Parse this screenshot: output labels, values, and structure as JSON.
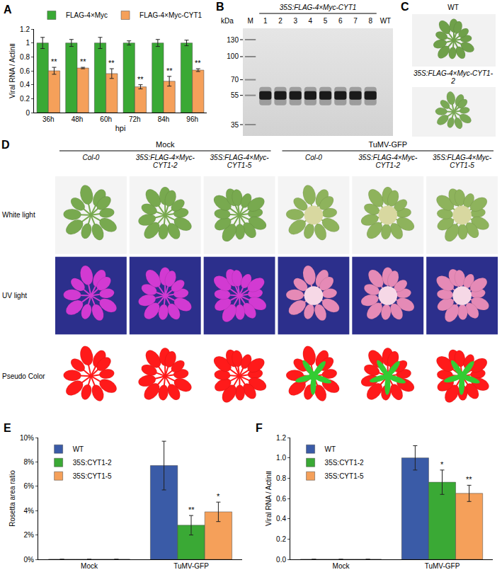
{
  "chart_data": [
    {
      "type": "bar",
      "annotations": [
        "A"
      ],
      "categories": [
        "36h",
        "48h",
        "60h",
        "72h",
        "84h",
        "96h"
      ],
      "xlabel": "hpi",
      "ylabel": "Viral RNA / ActinⅡ",
      "ylim": [
        0,
        1.2
      ],
      "yticks": [
        0,
        0.2,
        0.4,
        0.6,
        0.8,
        1,
        1.2
      ],
      "grid": false,
      "legend": "top",
      "series": [
        {
          "name": "FLAG-4×Myc",
          "color": "#3aa935",
          "values": [
            1,
            1,
            1,
            1,
            1,
            1
          ],
          "errors": [
            0.08,
            0.05,
            0.08,
            0.03,
            0.05,
            0.04
          ]
        },
        {
          "name": "FLAG-4×Myc-CYT1",
          "color": "#f5a05a",
          "values": [
            0.6,
            0.64,
            0.56,
            0.37,
            0.45,
            0.61
          ],
          "errors": [
            0.05,
            0.01,
            0.07,
            0.03,
            0.07,
            0.02
          ],
          "significance": [
            "**",
            "**",
            "**",
            "**",
            "**",
            "**"
          ]
        }
      ]
    },
    {
      "type": "bar",
      "annotations": [
        "E"
      ],
      "categories": [
        "Mock",
        "TuMV-GFP"
      ],
      "ylabel": "Rosetta area ratio",
      "ylim": [
        0,
        10
      ],
      "yticks": [
        {
          "value": 0,
          "label": "0%"
        },
        {
          "value": 2,
          "label": "2%"
        },
        {
          "value": 4,
          "label": "4%"
        },
        {
          "value": 6,
          "label": "6%"
        },
        {
          "value": 8,
          "label": "8%"
        },
        {
          "value": 10,
          "label": "10%"
        }
      ],
      "grid": false,
      "legend": "upper left",
      "series": [
        {
          "name": "WT",
          "color": "#3a5ba7",
          "values": [
            0,
            7.7
          ],
          "errors": [
            0,
            2.0
          ]
        },
        {
          "name": "35S:CYT1-2",
          "color": "#3aa935",
          "values": [
            0,
            2.8
          ],
          "errors": [
            0,
            0.8
          ],
          "significance": [
            null,
            "**"
          ]
        },
        {
          "name": "35S:CYT1-5",
          "color": "#f5a05a",
          "values": [
            0,
            3.9
          ],
          "errors": [
            0,
            0.8
          ],
          "significance": [
            null,
            "*"
          ]
        }
      ]
    },
    {
      "type": "bar",
      "annotations": [
        "F"
      ],
      "categories": [
        "Mock",
        "TuMV-GFP"
      ],
      "ylabel": "Viral RNA / ActinⅡ",
      "ylim": [
        0,
        1.2
      ],
      "yticks": [
        {
          "value": 0,
          "label": "0.0"
        },
        0.2,
        0.4,
        0.6,
        0.8,
        {
          "value": 1,
          "label": "1.0"
        },
        1.2
      ],
      "grid": false,
      "legend": "upper left",
      "series": [
        {
          "name": "WT",
          "color": "#3a5ba7",
          "values": [
            0,
            1.0
          ],
          "errors": [
            0,
            0.12
          ]
        },
        {
          "name": "35S:CYT1-2",
          "color": "#3aa935",
          "values": [
            0,
            0.76
          ],
          "errors": [
            0,
            0.12
          ],
          "significance": [
            null,
            "*"
          ]
        },
        {
          "name": "35S:CYT1-5",
          "color": "#f5a05a",
          "values": [
            0,
            0.65
          ],
          "errors": [
            0,
            0.08
          ],
          "significance": [
            null,
            "**"
          ]
        }
      ]
    }
  ],
  "blot": {
    "letter": "B",
    "header": "35S:FLAG-4×Myc-CYT1",
    "unit": "kDa",
    "markers": [
      130,
      100,
      70,
      55,
      35
    ],
    "lanes": [
      "M",
      "1",
      "2",
      "3",
      "4",
      "5",
      "6",
      "7",
      "8",
      "WT"
    ],
    "band_kda": 55,
    "band_lanes": [
      "1",
      "2",
      "3",
      "4",
      "5",
      "6",
      "7",
      "8"
    ]
  },
  "photo_c": {
    "letter": "C",
    "labels": [
      "WT",
      "35S:FLAG-4×Myc-CYT1-2"
    ]
  },
  "photo_d": {
    "letter": "D",
    "groups": [
      "Mock",
      "TuMV-GFP"
    ],
    "columns": [
      "Col-0",
      "35S:FLAG-4×Myc-CYT1-2",
      "35S:FLAG-4×Myc-CYT1-5"
    ],
    "rows": [
      "White light",
      "UV light",
      "Pseudo Color"
    ]
  }
}
